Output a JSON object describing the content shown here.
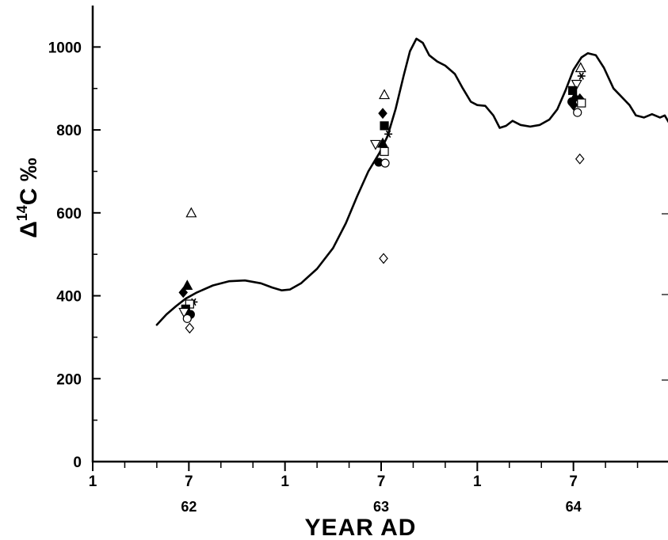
{
  "chart_data": {
    "type": "scatter",
    "xlabel": "YEAR AD",
    "ylabel": "Δ¹⁴C ‰",
    "ylabel_parts": {
      "delta": "Δ",
      "superscript": "14",
      "rest": "C ‰"
    },
    "ylim": [
      0,
      1100
    ],
    "xlim": [
      0,
      36
    ],
    "yticks": [
      0,
      200,
      400,
      600,
      800,
      1000
    ],
    "x_tick_labels": [
      {
        "x": 0,
        "month": "1"
      },
      {
        "x": 6,
        "month": "7"
      },
      {
        "x": 12,
        "month": "1"
      },
      {
        "x": 18,
        "month": "7"
      },
      {
        "x": 24,
        "month": "1"
      },
      {
        "x": 30,
        "month": "7"
      }
    ],
    "year_labels": [
      {
        "x": 6,
        "label": "62"
      },
      {
        "x": 18,
        "label": "63"
      },
      {
        "x": 30,
        "label": "64"
      }
    ],
    "grid": false,
    "line_series": {
      "points": [
        [
          4.0,
          330
        ],
        [
          4.6,
          355
        ],
        [
          5.2,
          375
        ],
        [
          5.8,
          393
        ],
        [
          6.5,
          408
        ],
        [
          7.5,
          425
        ],
        [
          8.5,
          435
        ],
        [
          9.5,
          437
        ],
        [
          10.5,
          430
        ],
        [
          11.2,
          420
        ],
        [
          11.8,
          413
        ],
        [
          12.3,
          415
        ],
        [
          13.0,
          430
        ],
        [
          14.0,
          465
        ],
        [
          15.0,
          515
        ],
        [
          15.8,
          575
        ],
        [
          16.5,
          640
        ],
        [
          17.2,
          700
        ],
        [
          17.9,
          745
        ],
        [
          18.4,
          785
        ],
        [
          18.9,
          850
        ],
        [
          19.4,
          930
        ],
        [
          19.8,
          990
        ],
        [
          20.2,
          1020
        ],
        [
          20.6,
          1010
        ],
        [
          21.0,
          980
        ],
        [
          21.5,
          965
        ],
        [
          22.0,
          955
        ],
        [
          22.6,
          935
        ],
        [
          23.1,
          900
        ],
        [
          23.6,
          868
        ],
        [
          24.0,
          860
        ],
        [
          24.5,
          858
        ],
        [
          25.0,
          835
        ],
        [
          25.4,
          805
        ],
        [
          25.8,
          810
        ],
        [
          26.2,
          822
        ],
        [
          26.7,
          812
        ],
        [
          27.3,
          808
        ],
        [
          27.9,
          812
        ],
        [
          28.5,
          825
        ],
        [
          29.0,
          850
        ],
        [
          29.5,
          895
        ],
        [
          30.0,
          945
        ],
        [
          30.5,
          975
        ],
        [
          30.9,
          985
        ],
        [
          31.4,
          980
        ],
        [
          31.9,
          950
        ],
        [
          32.5,
          900
        ],
        [
          33.0,
          880
        ],
        [
          33.5,
          860
        ],
        [
          33.9,
          835
        ],
        [
          34.4,
          830
        ],
        [
          34.9,
          838
        ],
        [
          35.4,
          830
        ],
        [
          35.7,
          835
        ],
        [
          36.0,
          815
        ]
      ]
    },
    "scatter_points": [
      {
        "x": 6.15,
        "y": 600,
        "marker": "triangle-open"
      },
      {
        "x": 5.9,
        "y": 425,
        "marker": "triangle-filled"
      },
      {
        "x": 5.65,
        "y": 408,
        "marker": "diamond-filled"
      },
      {
        "x": 6.3,
        "y": 385,
        "marker": "asterisk"
      },
      {
        "x": 6.05,
        "y": 380,
        "marker": "square-open"
      },
      {
        "x": 5.8,
        "y": 368,
        "marker": "square-filled"
      },
      {
        "x": 5.7,
        "y": 360,
        "marker": "triangle-down-open"
      },
      {
        "x": 6.1,
        "y": 355,
        "marker": "circle-filled"
      },
      {
        "x": 5.9,
        "y": 345,
        "marker": "circle-open"
      },
      {
        "x": 6.05,
        "y": 322,
        "marker": "diamond-open"
      },
      {
        "x": 18.2,
        "y": 885,
        "marker": "triangle-open"
      },
      {
        "x": 18.1,
        "y": 840,
        "marker": "diamond-filled"
      },
      {
        "x": 18.2,
        "y": 810,
        "marker": "square-filled"
      },
      {
        "x": 18.45,
        "y": 790,
        "marker": "asterisk"
      },
      {
        "x": 18.1,
        "y": 768,
        "marker": "triangle-filled"
      },
      {
        "x": 17.65,
        "y": 765,
        "marker": "triangle-down-open"
      },
      {
        "x": 18.2,
        "y": 748,
        "marker": "square-open"
      },
      {
        "x": 17.85,
        "y": 722,
        "marker": "circle-filled"
      },
      {
        "x": 18.25,
        "y": 720,
        "marker": "circle-open"
      },
      {
        "x": 18.15,
        "y": 490,
        "marker": "diamond-open"
      },
      {
        "x": 30.45,
        "y": 950,
        "marker": "triangle-open"
      },
      {
        "x": 30.5,
        "y": 930,
        "marker": "asterisk"
      },
      {
        "x": 30.2,
        "y": 910,
        "marker": "triangle-down-open"
      },
      {
        "x": 29.95,
        "y": 895,
        "marker": "square-filled"
      },
      {
        "x": 30.1,
        "y": 880,
        "marker": "triangle-filled"
      },
      {
        "x": 30.4,
        "y": 875,
        "marker": "diamond-filled"
      },
      {
        "x": 29.9,
        "y": 868,
        "marker": "circle-filled"
      },
      {
        "x": 30.5,
        "y": 865,
        "marker": "square-open"
      },
      {
        "x": 30.0,
        "y": 860,
        "marker": "diamond-filled"
      },
      {
        "x": 30.25,
        "y": 842,
        "marker": "circle-open"
      },
      {
        "x": 30.4,
        "y": 730,
        "marker": "diamond-open"
      }
    ]
  }
}
